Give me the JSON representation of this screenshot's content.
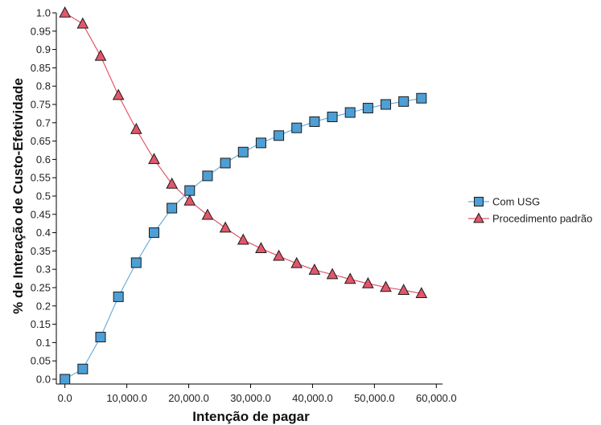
{
  "chart_data": {
    "type": "line",
    "xlabel": "Intenção de pagar",
    "ylabel": "% de Interação de Custo-Efetividade",
    "xlim": [
      -1000,
      61000
    ],
    "ylim": [
      0,
      1.0
    ],
    "x_ticks": [
      0,
      10000,
      20000,
      30000,
      40000,
      50000,
      60000
    ],
    "x_tick_labels": [
      "0.0",
      "10,000.0",
      "20,000.0",
      "30,000.0",
      "40,000.0",
      "50,000.0",
      "60,000.0"
    ],
    "y_ticks": [
      0,
      0.05,
      0.1,
      0.15,
      0.2,
      0.25,
      0.3,
      0.35,
      0.4,
      0.45,
      0.5,
      0.55,
      0.6,
      0.65,
      0.7,
      0.75,
      0.8,
      0.85,
      0.9,
      0.95,
      1.0
    ],
    "y_tick_labels": [
      "0.0",
      "0.05",
      "0.1",
      "0.15",
      "0.2",
      "0.25",
      "0.3",
      "0.35",
      "0.4",
      "0.45",
      "0.5",
      "0.55",
      "0.6",
      "0.65",
      "0.7",
      "0.75",
      "0.8",
      "0.85",
      "0.9",
      "0.95",
      "1.0"
    ],
    "grid": false,
    "legend_position": "right",
    "x": [
      0,
      2880,
      5760,
      8640,
      11520,
      14400,
      17280,
      20160,
      23040,
      25920,
      28800,
      31680,
      34560,
      37440,
      40320,
      43200,
      46080,
      48960,
      51840,
      54720,
      57600
    ],
    "series": [
      {
        "name": "Com USG",
        "marker": "square",
        "color": "#4d9fd6",
        "line_color": "#6aaedc",
        "values": [
          0.0,
          0.028,
          0.115,
          0.225,
          0.318,
          0.4,
          0.467,
          0.515,
          0.555,
          0.59,
          0.62,
          0.645,
          0.665,
          0.686,
          0.703,
          0.716,
          0.728,
          0.74,
          0.75,
          0.758,
          0.767
        ]
      },
      {
        "name": "Procedimento padrão",
        "marker": "triangle",
        "color": "#e2576a",
        "line_color": "#e2576a",
        "values": [
          1.0,
          0.97,
          0.882,
          0.775,
          0.682,
          0.6,
          0.533,
          0.487,
          0.448,
          0.413,
          0.38,
          0.357,
          0.336,
          0.316,
          0.298,
          0.286,
          0.273,
          0.261,
          0.251,
          0.243,
          0.234
        ]
      }
    ]
  }
}
